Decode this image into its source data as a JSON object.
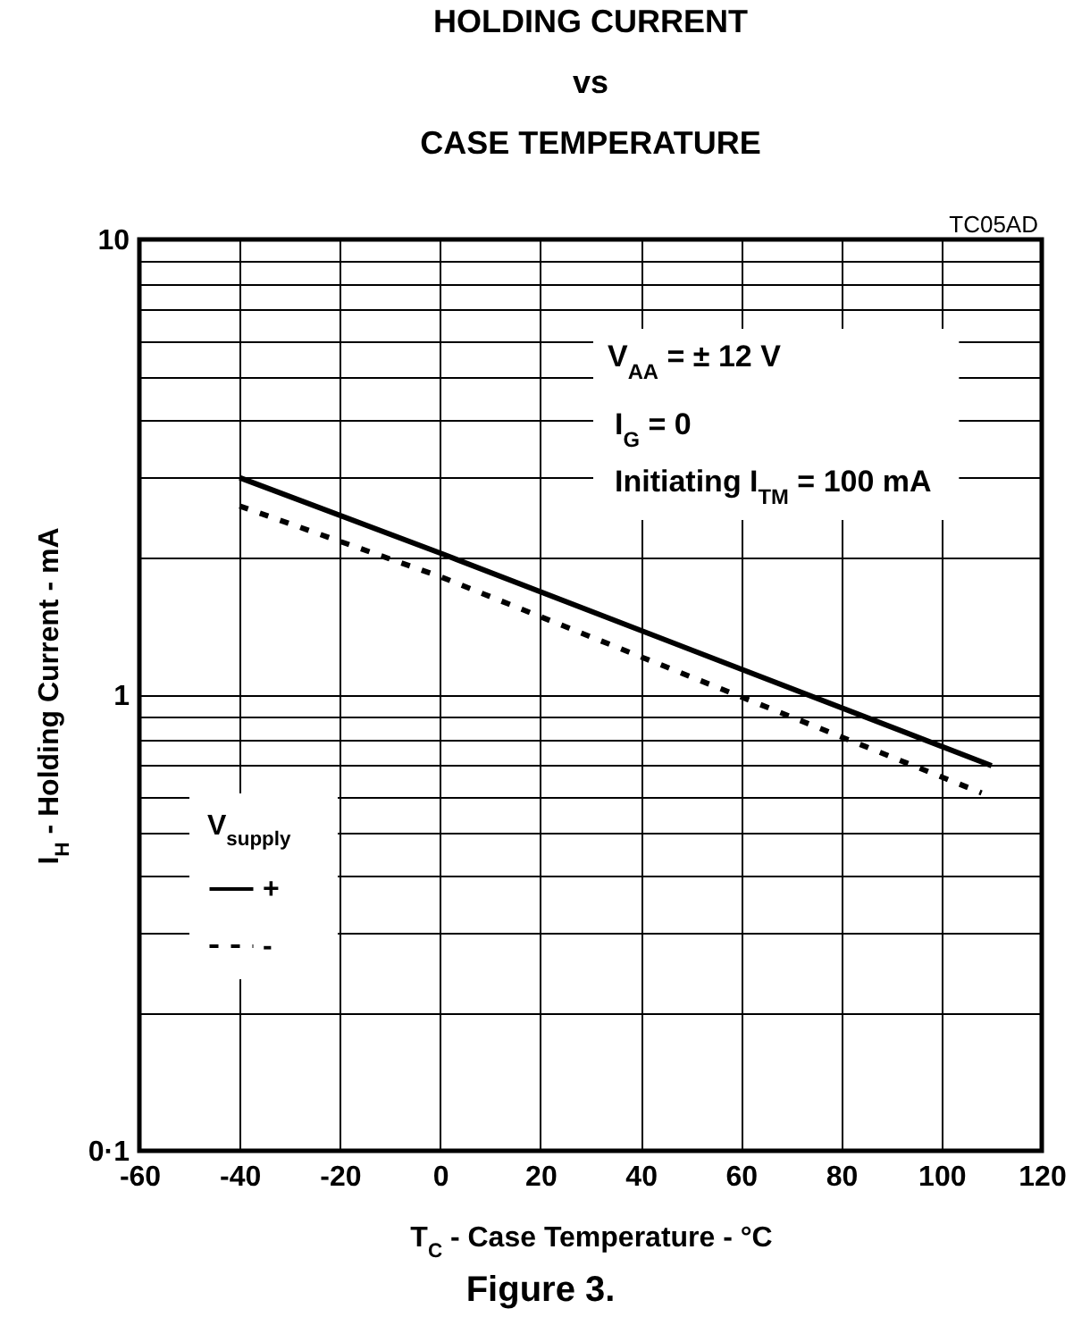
{
  "chart_data": {
    "type": "line",
    "title": "HOLDING CURRENT\nvs\nCASE TEMPERATURE",
    "xlabel": "T$_{C}$ - Case Temperature - °C",
    "ylabel": "I$_{H}$ - Holding Current - mA",
    "legend_title": "V$_{supply}$",
    "legend": "bottom left",
    "grid": true,
    "log": "y",
    "xlim": [
      -60,
      120
    ],
    "xticks": [
      -60,
      -40,
      -20,
      0,
      20,
      40,
      60,
      80,
      100,
      120
    ],
    "ylim": [
      0.1,
      10
    ],
    "yticks": [
      {
        "value": 0.1,
        "label": "0·1"
      },
      {
        "value": 0.2,
        "label": null
      },
      {
        "value": 0.3,
        "label": null
      },
      {
        "value": 0.4,
        "label": null
      },
      {
        "value": 0.5,
        "label": null
      },
      {
        "value": 0.6,
        "label": null
      },
      {
        "value": 0.7,
        "label": null
      },
      {
        "value": 0.8,
        "label": null
      },
      {
        "value": 0.9,
        "label": null
      },
      1,
      {
        "value": 2,
        "label": null
      },
      {
        "value": 3,
        "label": null
      },
      {
        "value": 4,
        "label": null
      },
      {
        "value": 5,
        "label": null
      },
      {
        "value": 6,
        "label": null
      },
      {
        "value": 7,
        "label": null
      },
      {
        "value": 8,
        "label": null
      },
      {
        "value": 9,
        "label": null
      },
      10
    ],
    "series": [
      {
        "name": "+",
        "color": "#000000",
        "line_style": "solid",
        "x": [
          -40,
          0,
          110
        ],
        "values": [
          3.0,
          2.05,
          0.7
        ]
      },
      {
        "name": "-",
        "color": "#000000",
        "line_style": "dashed",
        "x": [
          -40,
          0,
          108
        ],
        "values": [
          2.6,
          1.82,
          0.61
        ]
      }
    ],
    "annotations": [
      "V$_{AA}$ = ± 12 V",
      "I$_{G}$ = 0",
      "Initiating I$_{TM}$ = 100 mA",
      "TC05AD",
      "Figure 3."
    ]
  }
}
